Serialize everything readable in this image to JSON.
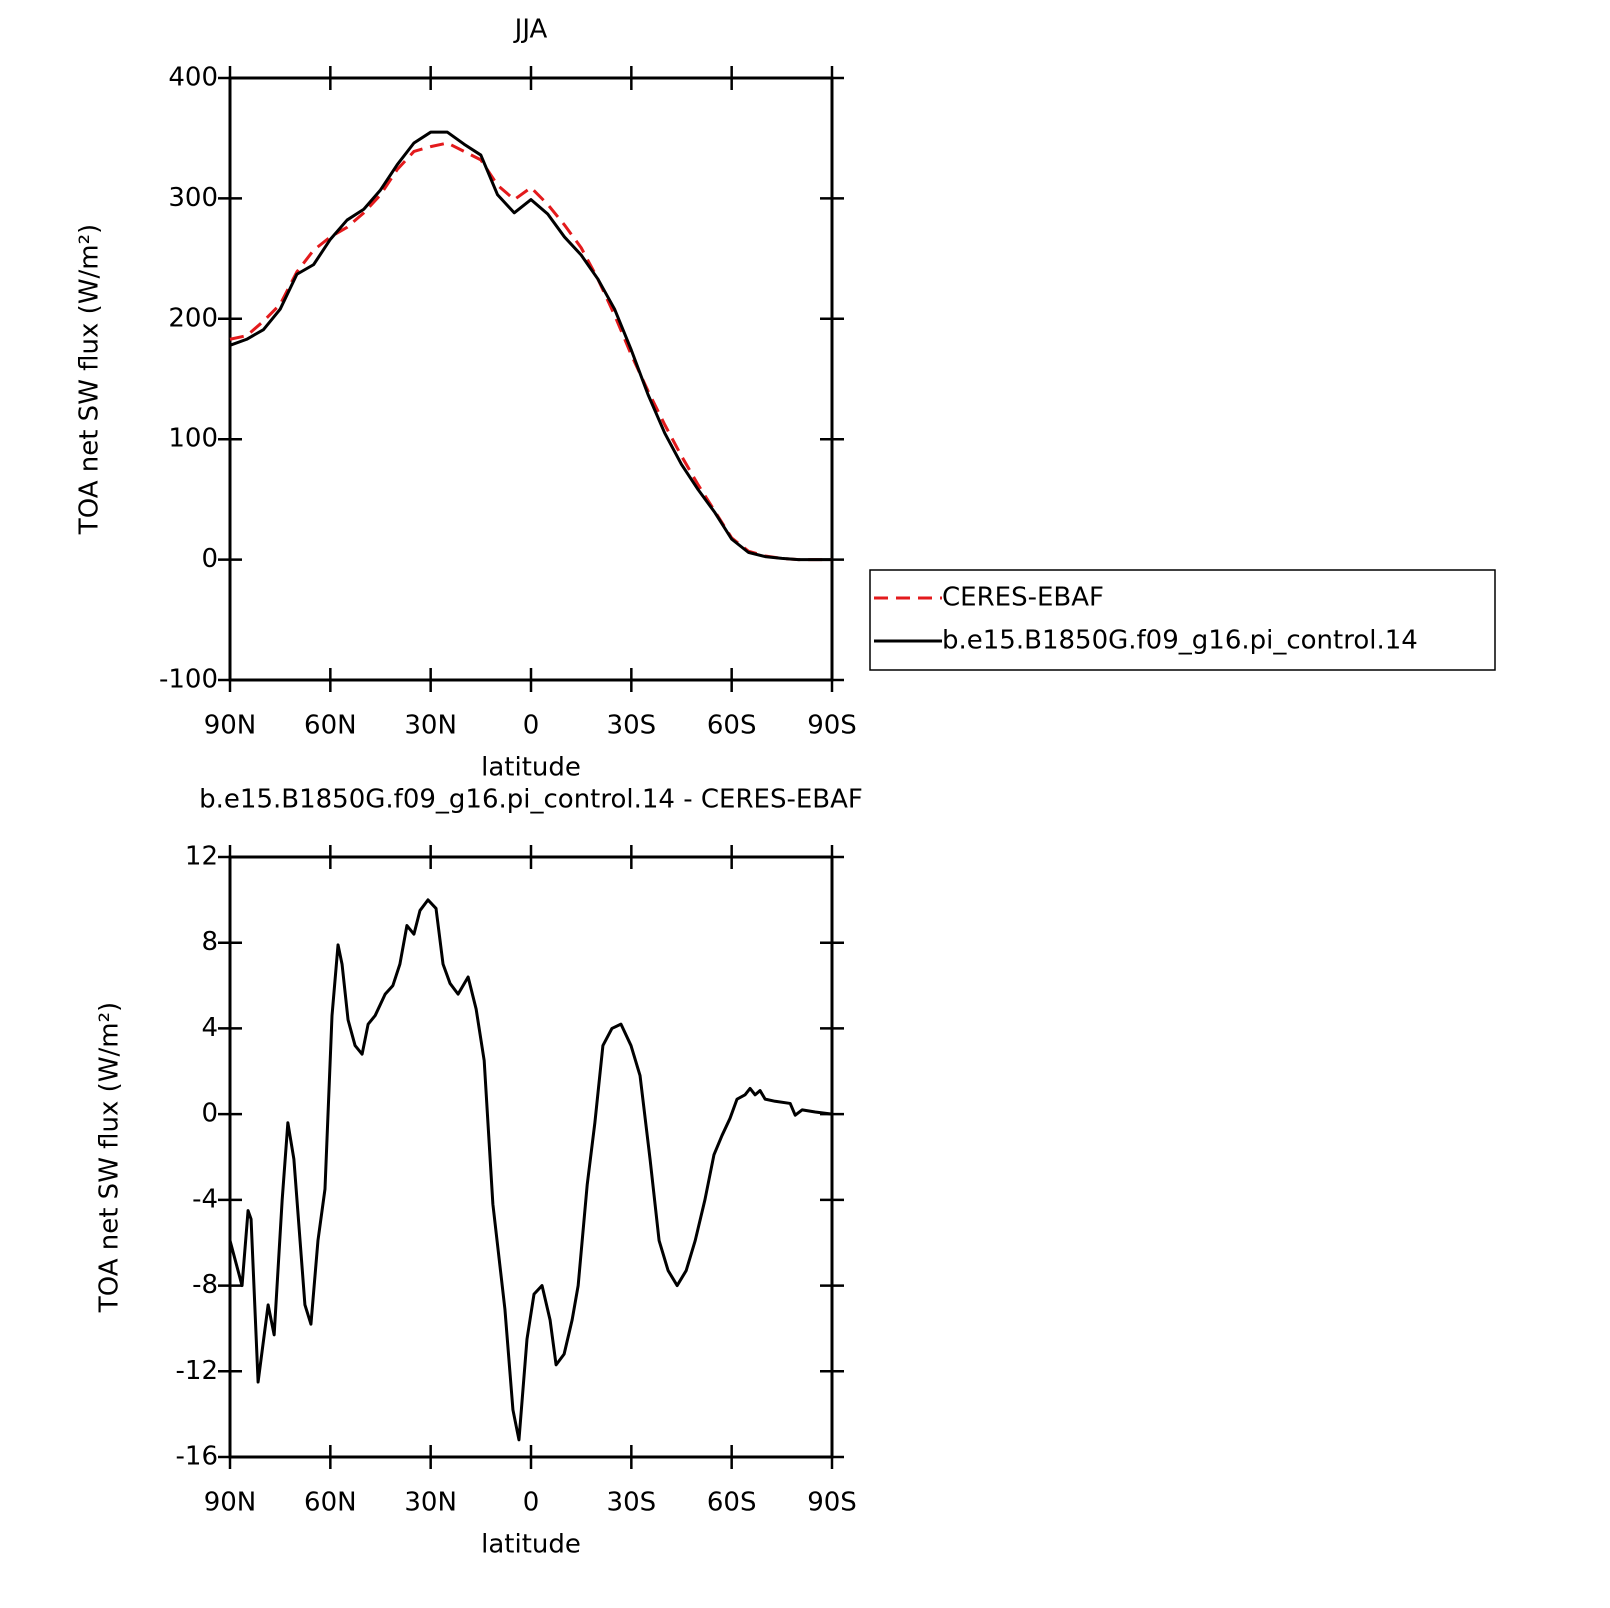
{
  "chart_data": [
    {
      "type": "line",
      "title": "JJA",
      "ylabel": "TOA net SW flux (W/m²)",
      "xlabel": "latitude",
      "x": [
        90,
        85,
        80,
        75,
        70,
        65,
        60,
        55,
        50,
        45,
        40,
        35,
        30,
        25,
        20,
        15,
        10,
        5,
        0,
        -5,
        -10,
        -15,
        -20,
        -25,
        -30,
        -35,
        -40,
        -45,
        -50,
        -55,
        -60,
        -65,
        -70,
        -75,
        -80,
        -85,
        -90
      ],
      "series": [
        {
          "name": "CERES-EBAF",
          "color": "#e31a1c",
          "linestyle": "dashed",
          "values": [
            183,
            186,
            198,
            212,
            239,
            257,
            268,
            276,
            288,
            303,
            324,
            339,
            343,
            346,
            339,
            332,
            311,
            299,
            309,
            295,
            278,
            259,
            233,
            203,
            170,
            140,
            112,
            86,
            62,
            40,
            18,
            7,
            3,
            1,
            0,
            0,
            0
          ]
        },
        {
          "name": "b.e15.B1850G.f09_g16.pi_control.14",
          "color": "#000000",
          "linestyle": "solid",
          "values": [
            178,
            183,
            191,
            208,
            237,
            245,
            266,
            282,
            291,
            307,
            328,
            346,
            355,
            355,
            345,
            336,
            303,
            288,
            299,
            287,
            268,
            253,
            233,
            208,
            174,
            137,
            105,
            79,
            58,
            39,
            17,
            6,
            2.5,
            1,
            0,
            0,
            0
          ]
        }
      ],
      "xlim": [
        90,
        -90
      ],
      "xticks": [
        {
          "value": 90,
          "label": "90N"
        },
        {
          "value": 60,
          "label": "60N"
        },
        {
          "value": 30,
          "label": "30N"
        },
        0,
        {
          "value": -30,
          "label": "30S"
        },
        {
          "value": -60,
          "label": "60S"
        },
        {
          "value": -90,
          "label": "90S"
        }
      ],
      "ylim": [
        -100,
        400
      ],
      "yticks": [
        -100,
        0,
        100,
        200,
        300,
        400
      ],
      "legend": "right"
    },
    {
      "type": "line",
      "title": "b.e15.B1850G.f09_g16.pi_control.14 - CERES-EBAF",
      "ylabel": "TOA net SW flux (W/m²)",
      "xlabel": "latitude",
      "x": [
        90,
        86.4,
        84.6,
        83.7,
        81.6,
        78.6,
        76.8,
        74.4,
        72.7,
        70.9,
        67.6,
        65.8,
        63.7,
        61.6,
        59.5,
        57.7,
        56.5,
        54.7,
        52.6,
        50.5,
        48.7,
        46.6,
        43.6,
        41.3,
        39.2,
        37.1,
        35.0,
        33.2,
        30.8,
        28.4,
        26.3,
        24.2,
        21.8,
        18.8,
        16.4,
        14.0,
        11.4,
        7.8,
        5.4,
        3.6,
        1.2,
        -0.9,
        -3.3,
        -5.7,
        -7.5,
        -9.9,
        -12.3,
        -14.1,
        -16.8,
        -19.1,
        -21.5,
        -24.2,
        -26.9,
        -29.9,
        -32.6,
        -35.6,
        -38.3,
        -41.0,
        -43.7,
        -46.4,
        -49.1,
        -52.0,
        -54.7,
        -57.1,
        -59.5,
        -61.6,
        -64.0,
        -65.5,
        -67.0,
        -68.5,
        -70.0,
        -73.0,
        -77.5,
        -79.0,
        -81.1,
        -85.0,
        -90
      ],
      "values": [
        -5.9,
        -8.0,
        -4.5,
        -4.9,
        -12.5,
        -8.9,
        -10.3,
        -4.0,
        -0.4,
        -2.1,
        -8.9,
        -9.8,
        -5.9,
        -3.5,
        4.6,
        7.9,
        7.0,
        4.4,
        3.2,
        2.8,
        4.2,
        4.6,
        5.6,
        6.0,
        7.0,
        8.8,
        8.4,
        9.5,
        10.0,
        9.6,
        7.0,
        6.1,
        5.6,
        6.4,
        4.9,
        2.5,
        -4.2,
        -9.1,
        -13.8,
        -15.2,
        -10.5,
        -8.4,
        -8.0,
        -9.6,
        -11.7,
        -11.2,
        -9.6,
        -8.0,
        -3.3,
        -0.4,
        3.2,
        4.0,
        4.2,
        3.2,
        1.8,
        -2.1,
        -5.9,
        -7.3,
        -8.0,
        -7.3,
        -5.9,
        -4.0,
        -1.9,
        -1.0,
        -0.2,
        0.7,
        0.9,
        1.2,
        0.9,
        1.1,
        0.7,
        0.6,
        0.5,
        -0.05,
        0.2,
        0.1,
        0
      ],
      "color": "#000000",
      "xlim": [
        90,
        -90
      ],
      "xticks": [
        {
          "value": 90,
          "label": "90N"
        },
        {
          "value": 60,
          "label": "60N"
        },
        {
          "value": 30,
          "label": "30N"
        },
        0,
        {
          "value": -30,
          "label": "30S"
        },
        {
          "value": -60,
          "label": "60S"
        },
        {
          "value": -90,
          "label": "90S"
        }
      ],
      "ylim": [
        -16,
        12
      ],
      "yticks": [
        -16,
        -12,
        -8,
        -4,
        0,
        4,
        8,
        12
      ]
    }
  ]
}
